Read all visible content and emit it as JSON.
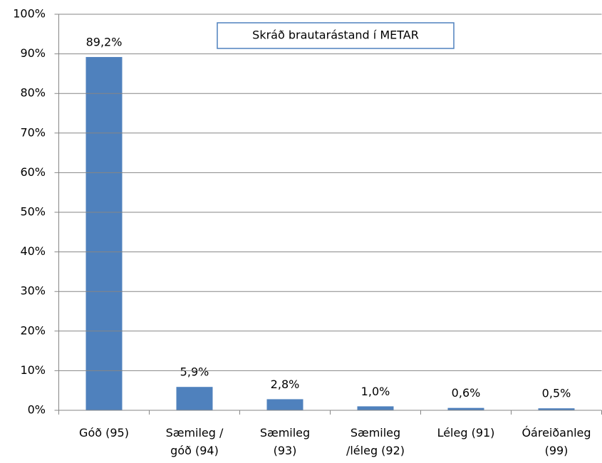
{
  "chart_data": {
    "type": "bar",
    "title": "Skráð brautarástand í METAR",
    "categories": [
      "Góð (95)",
      "Sæmileg /\ngóð (94)",
      "Sæmileg\n(93)",
      "Sæmileg\n/léleg (92)",
      "Léleg (91)",
      "Óáreiðanleg\n(99)"
    ],
    "values": [
      89.2,
      5.9,
      2.8,
      1.0,
      0.6,
      0.5
    ],
    "value_labels": [
      "89,2%",
      "5,9%",
      "2,8%",
      "1,0%",
      "0,6%",
      "0,5%"
    ],
    "color": "#4f81bd",
    "ylim": [
      0,
      100
    ],
    "yticks": [
      {
        "value": 0,
        "label": "0%"
      },
      {
        "value": 10,
        "label": "10%"
      },
      {
        "value": 20,
        "label": "20%"
      },
      {
        "value": 30,
        "label": "30%"
      },
      {
        "value": 40,
        "label": "40%"
      },
      {
        "value": 50,
        "label": "50%"
      },
      {
        "value": 60,
        "label": "60%"
      },
      {
        "value": 70,
        "label": "70%"
      },
      {
        "value": 80,
        "label": "80%"
      },
      {
        "value": 90,
        "label": "90%"
      },
      {
        "value": 100,
        "label": "100%"
      }
    ],
    "grid": true
  }
}
